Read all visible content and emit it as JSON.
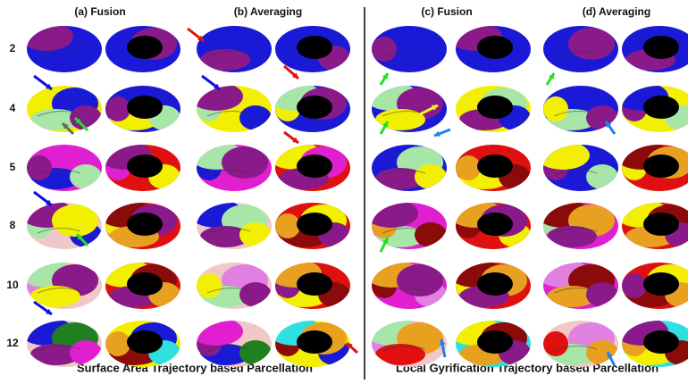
{
  "panels": [
    "(a) Fusion",
    "(b) Averaging",
    "(c) Fusion",
    "(d) Averaging"
  ],
  "rows": [
    "2",
    "4",
    "5",
    "8",
    "10",
    "12"
  ],
  "captions": [
    "Surface Area Trajectory based Parcellation",
    "Local Gyrification Trajectory  based Parcellation"
  ]
}
